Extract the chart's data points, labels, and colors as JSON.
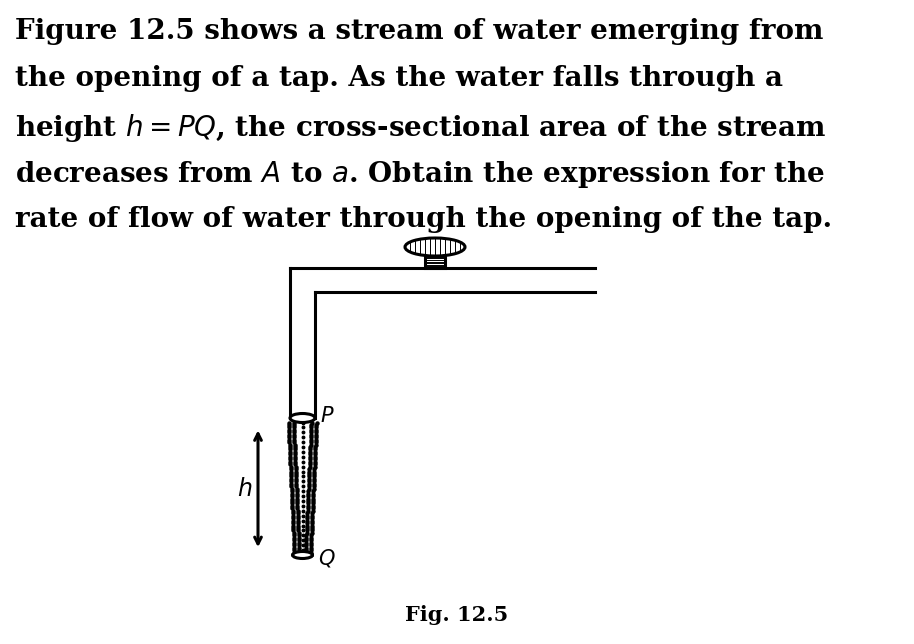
{
  "bg_color": "#ffffff",
  "text_color": "#000000",
  "fig_width": 9.14,
  "fig_height": 6.44,
  "dpi": 100,
  "text_lines": [
    "Figure 12.5 shows a stream of water emerging from",
    "the opening of a tap. As the water falls through a",
    "height $h = PQ$, the cross-sectional area of the stream",
    "decreases from $A$ to $a$. Obtain the expression for the",
    "rate of flow of water through the opening of the tap."
  ],
  "fig_label": "Fig. 12.5",
  "pipe_color": "#000000",
  "lw_pipe": 2.2,
  "lw_thin": 0.9,
  "stream_color": "#000000",
  "arrow_color": "#000000"
}
